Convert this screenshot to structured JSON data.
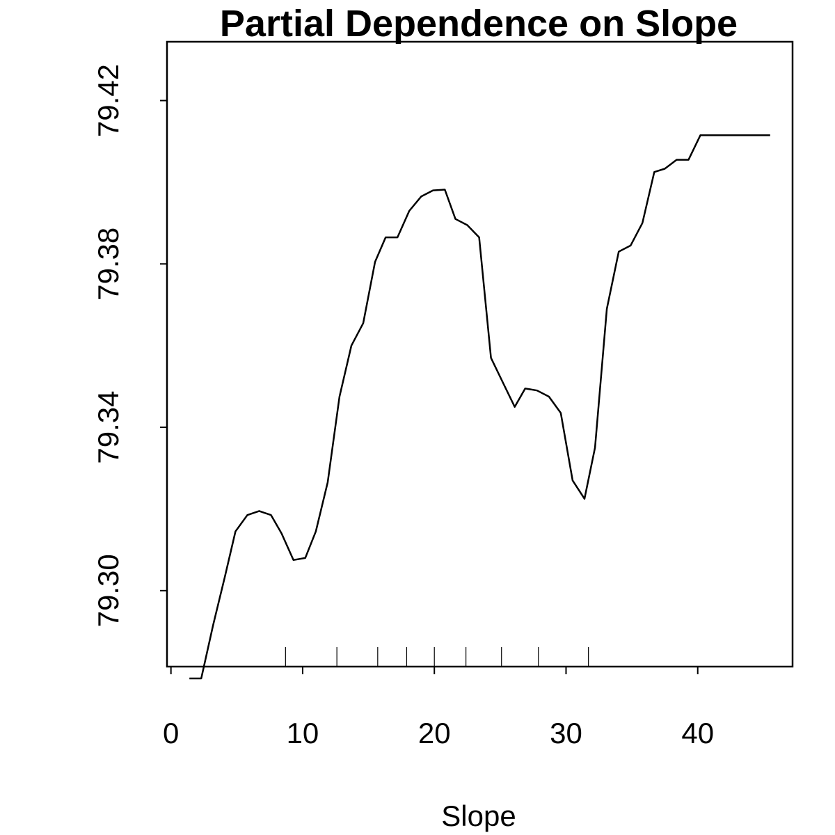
{
  "chart_data": {
    "type": "line",
    "title": "Partial Dependence on Slope",
    "xlabel": "Slope",
    "ylabel": "",
    "xlim": [
      -0.3,
      47.2
    ],
    "ylim": [
      79.2814,
      79.4344
    ],
    "x_ticks": [
      0,
      10,
      20,
      30,
      40
    ],
    "x_tick_labels": [
      "0",
      "10",
      "20",
      "30",
      "40"
    ],
    "y_ticks": [
      79.3,
      79.34,
      79.38,
      79.42
    ],
    "y_tick_labels": [
      "79.30",
      "79.34",
      "79.38",
      "79.42"
    ],
    "grid": false,
    "legend": "none",
    "rug": [
      8.7,
      12.6,
      15.7,
      17.9,
      20.0,
      22.4,
      25.1,
      27.9,
      31.7
    ],
    "series": [
      {
        "x": [
          1.4,
          2.3,
          3.2,
          4.1,
          4.9,
          5.8,
          6.7,
          7.6,
          8.4,
          9.3,
          10.2,
          11.0,
          11.9,
          12.8,
          13.7,
          14.6,
          15.5,
          16.3,
          17.2,
          18.1,
          19.0,
          19.9,
          20.8,
          21.6,
          22.5,
          23.4,
          24.3,
          25.2,
          26.1,
          26.9,
          27.8,
          28.7,
          29.6,
          30.5,
          31.4,
          32.2,
          33.1,
          34.0,
          34.9,
          35.8,
          36.7,
          37.5,
          38.4,
          39.3,
          40.2,
          41.1,
          42.0,
          42.9,
          43.8,
          44.6,
          45.5
        ],
        "y": [
          79.2785,
          79.2785,
          79.2915,
          79.3035,
          79.3145,
          79.3185,
          79.3195,
          79.3185,
          79.314,
          79.3075,
          79.308,
          79.3145,
          79.3265,
          79.3475,
          79.36,
          79.3655,
          79.3805,
          79.3865,
          79.3865,
          79.393,
          79.3965,
          79.398,
          79.3982,
          79.391,
          79.3895,
          79.3865,
          79.357,
          79.351,
          79.345,
          79.3495,
          79.349,
          79.3475,
          79.3435,
          79.327,
          79.3225,
          79.335,
          79.369,
          79.383,
          79.3845,
          79.39,
          79.4025,
          79.4033,
          79.4055,
          79.4055,
          79.4115,
          79.4115,
          79.4115,
          79.4115,
          79.4115,
          79.4115,
          79.4115
        ]
      }
    ]
  }
}
